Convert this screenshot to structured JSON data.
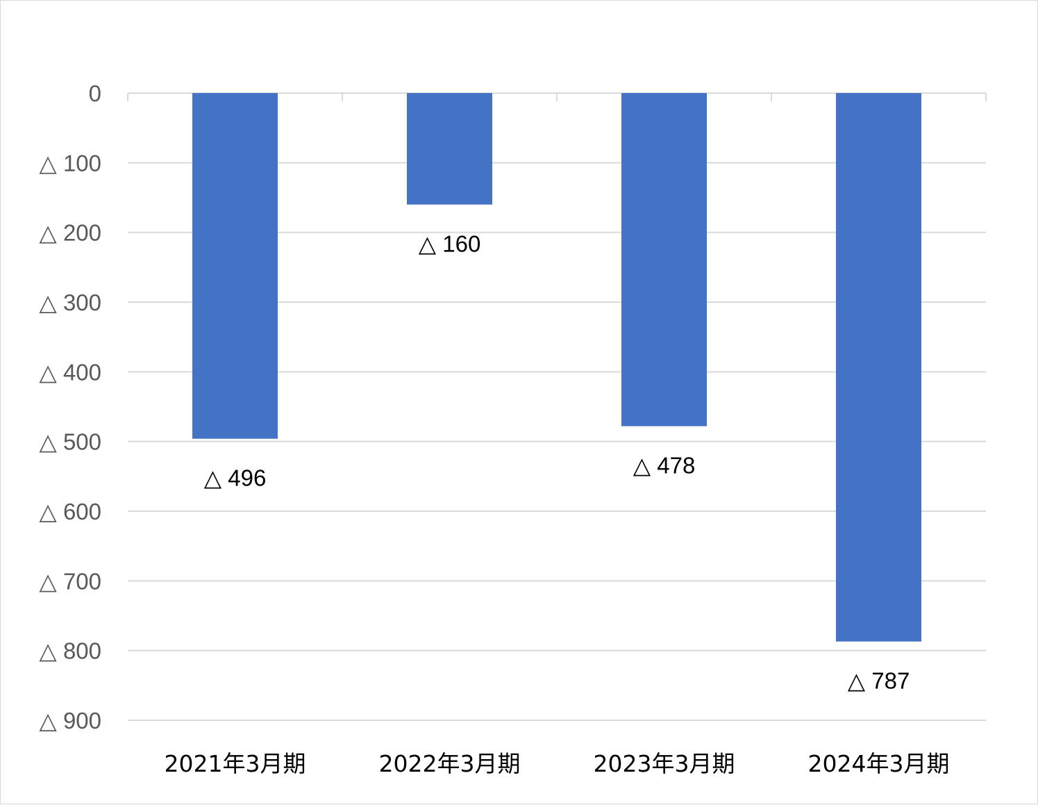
{
  "chart_data": {
    "type": "bar",
    "categories": [
      "2021年3月期",
      "2022年3月期",
      "2023年3月期",
      "2024年3月期"
    ],
    "values": [
      -496,
      -160,
      -478,
      -787
    ],
    "data_labels": [
      "△ 496",
      "△ 160",
      "△ 478",
      "△ 787"
    ],
    "y_ticks": [
      {
        "value": 0,
        "label": "0"
      },
      {
        "value": -100,
        "label": "△ 100"
      },
      {
        "value": -200,
        "label": "△ 200"
      },
      {
        "value": -300,
        "label": "△ 300"
      },
      {
        "value": -400,
        "label": "△ 400"
      },
      {
        "value": -500,
        "label": "△ 500"
      },
      {
        "value": -600,
        "label": "△ 600"
      },
      {
        "value": -700,
        "label": "△ 700"
      },
      {
        "value": -800,
        "label": "△ 800"
      },
      {
        "value": -900,
        "label": "△ 900"
      }
    ],
    "ylim": [
      -900,
      0
    ],
    "grid": true,
    "bar_color": "#4472c4",
    "grid_color": "#d9d9d9"
  }
}
